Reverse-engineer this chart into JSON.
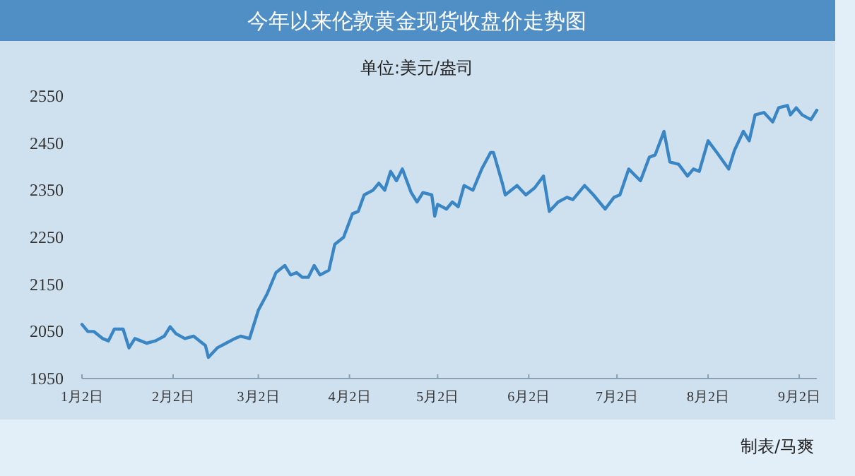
{
  "chart_data": {
    "type": "line",
    "title": "今年以来伦敦黄金现货收盘价走势图",
    "subtitle": "单位:美元/盎司",
    "annotations": [
      "制表/马爽"
    ],
    "color": "#3a86c4",
    "x": [
      "--01-02",
      "--01-04",
      "--01-06",
      "--01-09",
      "--01-11",
      "--01-13",
      "--01-16",
      "--01-18",
      "--01-20",
      "--01-22",
      "--01-24",
      "--01-27",
      "--01-30",
      "--02-01",
      "--02-03",
      "--02-06",
      "--02-09",
      "--02-11",
      "--02-13",
      "--02-14",
      "--02-17",
      "--02-20",
      "--02-23",
      "--02-25",
      "--02-28",
      "--02-29",
      "--03-02",
      "--03-05",
      "--03-08",
      "--03-10",
      "--03-11",
      "--03-13",
      "--03-15",
      "--03-17",
      "--03-19",
      "--03-21",
      "--03-23",
      "--03-26",
      "--03-28",
      "--03-31",
      "--04-03",
      "--04-05",
      "--04-07",
      "--04-10",
      "--04-12",
      "--04-14",
      "--04-16",
      "--04-18",
      "--04-20",
      "--04-23",
      "--04-25",
      "--04-27",
      "--04-30",
      "--05-01",
      "--05-02",
      "--05-05",
      "--05-07",
      "--05-09",
      "--05-11",
      "--05-14",
      "--05-17",
      "--05-20",
      "--05-21",
      "--05-24",
      "--05-25",
      "--05-29",
      "--06-01",
      "--06-04",
      "--06-07",
      "--06-09",
      "--06-12",
      "--06-15",
      "--06-17",
      "--06-21",
      "--06-24",
      "--06-28",
      "--07-01",
      "--07-03",
      "--07-06",
      "--07-10",
      "--07-13",
      "--07-15",
      "--07-18",
      "--07-20",
      "--07-23",
      "--07-26",
      "--07-28",
      "--07-30",
      "--08-02",
      "--08-05",
      "--08-09",
      "--08-11",
      "--08-14",
      "--08-16",
      "--08-18",
      "--08-21",
      "--08-24",
      "--08-26",
      "--08-29",
      "--08-30",
      "--09-01",
      "--09-03",
      "--09-06",
      "--09-08"
    ],
    "values": [
      2065,
      2050,
      2050,
      2035,
      2030,
      2055,
      2055,
      2015,
      2035,
      2030,
      2025,
      2030,
      2040,
      2060,
      2045,
      2035,
      2040,
      2030,
      2020,
      1995,
      2015,
      2025,
      2035,
      2040,
      2035,
      2055,
      2095,
      2130,
      2175,
      2185,
      2190,
      2170,
      2175,
      2165,
      2165,
      2190,
      2170,
      2180,
      2235,
      2250,
      2300,
      2305,
      2340,
      2350,
      2365,
      2350,
      2390,
      2370,
      2395,
      2345,
      2325,
      2345,
      2340,
      2295,
      2320,
      2310,
      2325,
      2315,
      2360,
      2350,
      2395,
      2430,
      2430,
      2365,
      2340,
      2360,
      2340,
      2355,
      2380,
      2305,
      2325,
      2335,
      2330,
      2360,
      2340,
      2310,
      2335,
      2340,
      2395,
      2370,
      2420,
      2425,
      2475,
      2410,
      2405,
      2380,
      2395,
      2390,
      2455,
      2430,
      2395,
      2435,
      2475,
      2455,
      2510,
      2515,
      2495,
      2525,
      2530,
      2510,
      2525,
      2510,
      2500,
      2520
    ],
    "xlim": [
      "--01-02",
      "--09-08"
    ],
    "xticks": [
      {
        "value": "--01-02",
        "label": "1月2日"
      },
      {
        "value": "--02-02",
        "label": "2月2日"
      },
      {
        "value": "--03-02",
        "label": "3月2日"
      },
      {
        "value": "--04-02",
        "label": "4月2日"
      },
      {
        "value": "--05-02",
        "label": "5月2日"
      },
      {
        "value": "--06-02",
        "label": "6月2日"
      },
      {
        "value": "--07-02",
        "label": "7月2日"
      },
      {
        "value": "--08-02",
        "label": "8月2日"
      },
      {
        "value": "--09-02",
        "label": "9月2日"
      }
    ],
    "ylim": [
      1950,
      2550
    ],
    "yticks": [
      1950,
      2050,
      2150,
      2250,
      2350,
      2450,
      2550
    ]
  }
}
